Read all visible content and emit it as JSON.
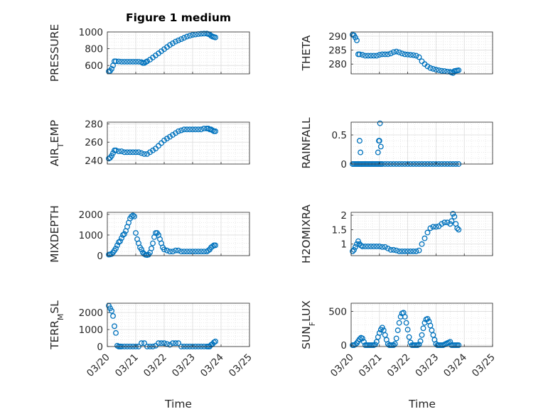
{
  "figure": {
    "title": "Figure 1 medium",
    "xlabel": "Time"
  },
  "colors": {
    "marker": "#0072bd",
    "axis": "#262626",
    "grid": "#dcdcdc",
    "background": "#ffffff"
  },
  "chart_data": [
    {
      "type": "scatter",
      "id": "pressure",
      "title": "Figure 1 medium",
      "ylabel": "PRESSURE",
      "xlim": [
        0,
        5
      ],
      "ylim": [
        500,
        1000
      ],
      "yticks": [
        {
          "v": 600,
          "t": "600"
        },
        {
          "v": 800,
          "t": "800"
        },
        {
          "v": 1000,
          "t": "1000"
        }
      ],
      "xtick_labels": false,
      "grid": "major+minor",
      "x": [
        0.05,
        0.1,
        0.15,
        0.2,
        0.25,
        0.3,
        0.4,
        0.5,
        0.6,
        0.7,
        0.8,
        0.9,
        1.0,
        1.1,
        1.2,
        1.25,
        1.3,
        1.35,
        1.4,
        1.5,
        1.6,
        1.7,
        1.8,
        1.9,
        2.0,
        2.1,
        2.2,
        2.3,
        2.4,
        2.5,
        2.6,
        2.7,
        2.8,
        2.9,
        3.0,
        3.1,
        3.2,
        3.3,
        3.4,
        3.5,
        3.55,
        3.6,
        3.65,
        3.7,
        3.75,
        3.8
      ],
      "y": [
        530,
        535,
        560,
        600,
        650,
        650,
        648,
        645,
        645,
        645,
        645,
        645,
        645,
        645,
        640,
        630,
        630,
        640,
        650,
        670,
        695,
        720,
        745,
        770,
        795,
        820,
        845,
        865,
        885,
        900,
        915,
        930,
        945,
        955,
        965,
        970,
        975,
        978,
        980,
        980,
        975,
        970,
        955,
        945,
        940,
        935
      ]
    },
    {
      "type": "scatter",
      "id": "theta",
      "title": "",
      "ylabel": "THETA",
      "xlim": [
        0,
        5
      ],
      "ylim": [
        276.5,
        291.5
      ],
      "yticks": [
        {
          "v": 280,
          "t": "280"
        },
        {
          "v": 285,
          "t": "285"
        },
        {
          "v": 290,
          "t": "290"
        }
      ],
      "xtick_labels": false,
      "grid": "major+minor",
      "x": [
        0.05,
        0.1,
        0.15,
        0.2,
        0.25,
        0.3,
        0.4,
        0.5,
        0.6,
        0.7,
        0.8,
        0.9,
        1.0,
        1.1,
        1.2,
        1.3,
        1.4,
        1.5,
        1.6,
        1.7,
        1.8,
        1.9,
        2.0,
        2.1,
        2.2,
        2.3,
        2.4,
        2.5,
        2.6,
        2.7,
        2.8,
        2.9,
        3.0,
        3.1,
        3.2,
        3.3,
        3.4,
        3.5,
        3.55,
        3.6,
        3.65,
        3.7,
        3.75,
        3.8
      ],
      "y": [
        290.5,
        290.3,
        289.5,
        288.5,
        283.5,
        283.5,
        283.3,
        283.0,
        283.0,
        283.0,
        283.0,
        283.0,
        283.3,
        283.5,
        283.5,
        283.5,
        283.8,
        284.3,
        284.5,
        284.2,
        283.8,
        283.5,
        283.4,
        283.3,
        283.2,
        283.0,
        282.5,
        281.0,
        280.0,
        279.2,
        278.6,
        278.3,
        278.0,
        277.8,
        277.6,
        277.5,
        277.3,
        277.2,
        277.0,
        276.8,
        277.5,
        277.6,
        277.7,
        277.8
      ]
    },
    {
      "type": "scatter",
      "id": "air-temp",
      "title": "",
      "ylabel": "AIR_TEMP",
      "xlim": [
        0,
        5
      ],
      "ylim": [
        236,
        282
      ],
      "yticks": [
        {
          "v": 240,
          "t": "240"
        },
        {
          "v": 260,
          "t": "260"
        },
        {
          "v": 280,
          "t": "280"
        }
      ],
      "xtick_labels": false,
      "grid": "major+minor",
      "x": [
        0.05,
        0.1,
        0.15,
        0.2,
        0.25,
        0.3,
        0.4,
        0.5,
        0.6,
        0.7,
        0.8,
        0.9,
        1.0,
        1.1,
        1.2,
        1.3,
        1.4,
        1.5,
        1.6,
        1.7,
        1.8,
        1.9,
        2.0,
        2.1,
        2.2,
        2.3,
        2.4,
        2.5,
        2.6,
        2.7,
        2.8,
        2.9,
        3.0,
        3.1,
        3.2,
        3.3,
        3.4,
        3.5,
        3.55,
        3.6,
        3.65,
        3.7,
        3.75,
        3.8
      ],
      "y": [
        242,
        243,
        245,
        248,
        251,
        251,
        250,
        250,
        249,
        249,
        249,
        249,
        249,
        249,
        248,
        247,
        247,
        249,
        251,
        253,
        256,
        259,
        262,
        264,
        266,
        268,
        270,
        272,
        273,
        274,
        274,
        274,
        274,
        274,
        274,
        274,
        275,
        275,
        275,
        274,
        274,
        273,
        272,
        272
      ]
    },
    {
      "type": "scatter",
      "id": "rainfall",
      "title": "",
      "ylabel": "RAINFALL",
      "xlim": [
        0,
        5
      ],
      "ylim": [
        0,
        0.72
      ],
      "yticks": [
        {
          "v": 0,
          "t": "0"
        },
        {
          "v": 0.5,
          "t": "0.5"
        }
      ],
      "xtick_labels": false,
      "grid": "major+minor",
      "x": [
        0.05,
        0.1,
        0.15,
        0.2,
        0.25,
        0.3,
        0.35,
        0.4,
        0.45,
        0.5,
        0.55,
        0.6,
        0.65,
        0.7,
        0.75,
        0.8,
        0.85,
        0.9,
        0.95,
        1.0,
        1.05,
        1.1,
        1.2,
        1.3,
        1.4,
        1.5,
        1.6,
        1.7,
        1.8,
        1.9,
        2.0,
        2.1,
        2.2,
        2.3,
        2.4,
        2.5,
        2.6,
        2.7,
        2.8,
        2.9,
        3.0,
        3.1,
        3.2,
        3.3,
        3.4,
        3.5,
        3.6,
        3.7,
        3.8,
        0.3,
        0.33,
        0.95,
        0.98,
        1.0,
        1.02,
        1.05
      ],
      "y": [
        0,
        0,
        0,
        0,
        0,
        0,
        0,
        0,
        0,
        0,
        0,
        0,
        0,
        0,
        0,
        0,
        0,
        0,
        0,
        0,
        0,
        0,
        0,
        0,
        0,
        0,
        0,
        0,
        0,
        0,
        0,
        0,
        0,
        0,
        0,
        0,
        0,
        0,
        0,
        0,
        0,
        0,
        0,
        0,
        0,
        0,
        0,
        0,
        0,
        0.4,
        0.2,
        0.2,
        0.4,
        0.4,
        0.7,
        0.3
      ]
    },
    {
      "type": "scatter",
      "id": "mixdepth",
      "title": "",
      "ylabel": "MIXDEPTH",
      "xlim": [
        0,
        5
      ],
      "ylim": [
        0,
        2100
      ],
      "yticks": [
        {
          "v": 0,
          "t": "0"
        },
        {
          "v": 1000,
          "t": "1000"
        },
        {
          "v": 2000,
          "t": "2000"
        }
      ],
      "xtick_labels": false,
      "grid": "major+minor",
      "x": [
        0.05,
        0.1,
        0.15,
        0.2,
        0.25,
        0.3,
        0.35,
        0.4,
        0.45,
        0.5,
        0.55,
        0.6,
        0.65,
        0.7,
        0.75,
        0.8,
        0.85,
        0.9,
        0.95,
        1.0,
        1.05,
        1.1,
        1.15,
        1.2,
        1.25,
        1.3,
        1.35,
        1.4,
        1.45,
        1.5,
        1.55,
        1.6,
        1.65,
        1.7,
        1.75,
        1.8,
        1.85,
        1.9,
        1.95,
        2.0,
        2.1,
        2.2,
        2.3,
        2.4,
        2.5,
        2.6,
        2.7,
        2.8,
        2.9,
        3.0,
        3.1,
        3.2,
        3.3,
        3.4,
        3.5,
        3.55,
        3.6,
        3.65,
        3.7,
        3.75,
        3.8
      ],
      "y": [
        50,
        60,
        80,
        150,
        250,
        350,
        500,
        650,
        700,
        850,
        1000,
        1050,
        1200,
        1400,
        1600,
        1800,
        1900,
        1950,
        1900,
        1100,
        800,
        600,
        400,
        300,
        150,
        80,
        40,
        30,
        50,
        150,
        350,
        600,
        900,
        1100,
        1100,
        1000,
        800,
        600,
        400,
        300,
        250,
        200,
        200,
        250,
        250,
        200,
        200,
        200,
        200,
        200,
        200,
        200,
        200,
        200,
        200,
        250,
        300,
        400,
        450,
        500,
        500
      ]
    },
    {
      "type": "scatter",
      "id": "h2omixra",
      "title": "",
      "ylabel": "H2OMIXRA",
      "xlim": [
        0,
        5
      ],
      "ylim": [
        0.6,
        2.1
      ],
      "yticks": [
        {
          "v": 1,
          "t": "1"
        },
        {
          "v": 1.5,
          "t": "1.5"
        },
        {
          "v": 2,
          "t": "2"
        }
      ],
      "xtick_labels": false,
      "grid": "major+minor",
      "x": [
        0.05,
        0.1,
        0.15,
        0.2,
        0.25,
        0.3,
        0.35,
        0.4,
        0.5,
        0.6,
        0.7,
        0.8,
        0.9,
        1.0,
        1.1,
        1.2,
        1.3,
        1.4,
        1.5,
        1.6,
        1.7,
        1.8,
        1.9,
        2.0,
        2.1,
        2.2,
        2.3,
        2.4,
        2.5,
        2.6,
        2.7,
        2.8,
        2.9,
        3.0,
        3.1,
        3.2,
        3.3,
        3.4,
        3.5,
        3.55,
        3.6,
        3.65,
        3.7,
        3.75,
        3.8
      ],
      "y": [
        0.75,
        0.8,
        0.9,
        1.0,
        1.1,
        1.0,
        0.95,
        0.92,
        0.92,
        0.92,
        0.92,
        0.92,
        0.92,
        0.92,
        0.9,
        0.9,
        0.85,
        0.8,
        0.8,
        0.78,
        0.75,
        0.75,
        0.75,
        0.75,
        0.75,
        0.75,
        0.75,
        0.78,
        1.0,
        1.2,
        1.4,
        1.55,
        1.6,
        1.6,
        1.62,
        1.7,
        1.75,
        1.75,
        1.7,
        1.8,
        2.05,
        1.95,
        1.7,
        1.55,
        1.5
      ]
    },
    {
      "type": "scatter",
      "id": "terr-msl",
      "title": "",
      "ylabel": "TERR_MSL",
      "xlim": [
        0,
        5
      ],
      "ylim": [
        0,
        2550
      ],
      "yticks": [
        {
          "v": 0,
          "t": "0"
        },
        {
          "v": 1000,
          "t": "1000"
        },
        {
          "v": 2000,
          "t": "2000"
        }
      ],
      "xlabel": "Time",
      "xtick_labels": true,
      "grid": "major+minor",
      "x": [
        0.05,
        0.1,
        0.15,
        0.2,
        0.25,
        0.3,
        0.35,
        0.4,
        0.45,
        0.5,
        0.6,
        0.7,
        0.8,
        0.9,
        1.0,
        1.1,
        1.2,
        1.3,
        1.4,
        1.5,
        1.6,
        1.7,
        1.8,
        1.9,
        2.0,
        2.1,
        2.2,
        2.3,
        2.4,
        2.5,
        2.6,
        2.7,
        2.8,
        2.9,
        3.0,
        3.1,
        3.2,
        3.3,
        3.4,
        3.5,
        3.55,
        3.6,
        3.65,
        3.7,
        3.75,
        3.8
      ],
      "y": [
        2400,
        2250,
        2100,
        1800,
        1200,
        800,
        50,
        0,
        0,
        0,
        0,
        0,
        0,
        0,
        0,
        0,
        200,
        200,
        0,
        0,
        0,
        50,
        200,
        200,
        200,
        150,
        100,
        200,
        200,
        200,
        0,
        0,
        0,
        0,
        0,
        0,
        0,
        0,
        0,
        0,
        0,
        0,
        100,
        150,
        250,
        300
      ]
    },
    {
      "type": "scatter",
      "id": "sun-flux",
      "title": "",
      "ylabel": "SUN_FLUX",
      "xlim": [
        0,
        5
      ],
      "ylim": [
        -20,
        620
      ],
      "yticks": [
        {
          "v": 0,
          "t": "0"
        },
        {
          "v": 500,
          "t": "500"
        }
      ],
      "xlabel": "Time",
      "xtick_labels": true,
      "grid": "major+minor",
      "x": [
        0.05,
        0.1,
        0.15,
        0.2,
        0.25,
        0.3,
        0.35,
        0.4,
        0.45,
        0.5,
        0.55,
        0.6,
        0.65,
        0.7,
        0.75,
        0.8,
        0.85,
        0.9,
        0.95,
        1.0,
        1.05,
        1.1,
        1.15,
        1.2,
        1.25,
        1.3,
        1.35,
        1.4,
        1.45,
        1.5,
        1.55,
        1.6,
        1.65,
        1.7,
        1.75,
        1.8,
        1.85,
        1.9,
        1.95,
        2.0,
        2.05,
        2.1,
        2.15,
        2.2,
        2.25,
        2.3,
        2.35,
        2.4,
        2.45,
        2.5,
        2.55,
        2.6,
        2.65,
        2.7,
        2.75,
        2.8,
        2.85,
        2.9,
        2.95,
        3.0,
        3.05,
        3.1,
        3.15,
        3.2,
        3.25,
        3.3,
        3.35,
        3.4,
        3.45,
        3.5,
        3.55,
        3.6,
        3.65,
        3.7,
        3.75,
        3.8
      ],
      "y": [
        0,
        0,
        10,
        30,
        60,
        90,
        110,
        100,
        50,
        0,
        0,
        0,
        0,
        0,
        0,
        0,
        10,
        50,
        120,
        180,
        230,
        260,
        220,
        150,
        80,
        20,
        0,
        0,
        0,
        0,
        20,
        100,
        220,
        330,
        420,
        470,
        480,
        420,
        330,
        230,
        120,
        40,
        0,
        0,
        0,
        0,
        0,
        10,
        60,
        150,
        250,
        330,
        380,
        390,
        350,
        290,
        220,
        150,
        80,
        20,
        0,
        0,
        0,
        0,
        0,
        10,
        20,
        30,
        40,
        50,
        0,
        0,
        0,
        0,
        0,
        0
      ]
    }
  ],
  "x_tick_labels": [
    "03/20",
    "03/21",
    "03/22",
    "03/23",
    "03/24",
    "03/25"
  ]
}
